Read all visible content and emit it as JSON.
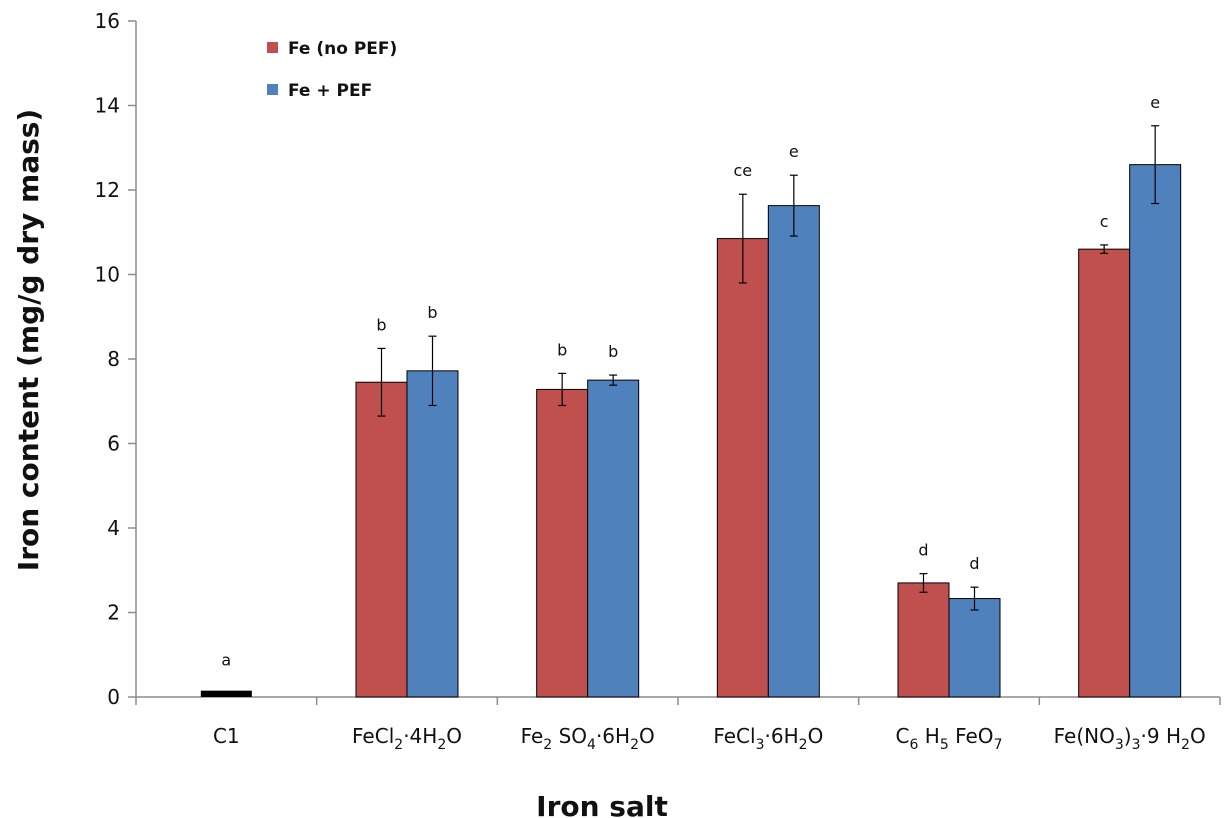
{
  "chart_data": {
    "type": "bar",
    "xlabel": "Iron salt",
    "ylabel": "Iron content (mg/g dry mass)",
    "ylim": [
      0,
      16
    ],
    "yticks": [
      0,
      2,
      4,
      6,
      8,
      10,
      12,
      14,
      16
    ],
    "categories": [
      "C1",
      "FeCl2·4H2O",
      "Fe2 SO4·6H2O",
      "FeCl3·6H2O",
      "C6 H5 FeO7",
      "Fe(NO3)3·9 H2O"
    ],
    "category_parts": [
      [
        [
          "C1",
          ""
        ]
      ],
      [
        [
          "FeCl",
          ""
        ],
        [
          "2",
          "sub"
        ],
        [
          "·4H",
          ""
        ],
        [
          "2",
          "sub"
        ],
        [
          "O",
          ""
        ]
      ],
      [
        [
          "Fe",
          ""
        ],
        [
          "2",
          "sub"
        ],
        [
          " SO",
          ""
        ],
        [
          "4",
          "sub"
        ],
        [
          "·6H",
          ""
        ],
        [
          "2",
          "sub"
        ],
        [
          "O",
          ""
        ]
      ],
      [
        [
          "FeCl",
          ""
        ],
        [
          "3",
          "sub"
        ],
        [
          "·6H",
          ""
        ],
        [
          "2",
          "sub"
        ],
        [
          "O",
          ""
        ]
      ],
      [
        [
          "C",
          ""
        ],
        [
          "6",
          "sub"
        ],
        [
          " H",
          ""
        ],
        [
          "5",
          "sub"
        ],
        [
          " FeO",
          ""
        ],
        [
          "7",
          "sub"
        ]
      ],
      [
        [
          "Fe(NO",
          ""
        ],
        [
          "3",
          "sub"
        ],
        [
          ")",
          ""
        ],
        [
          "3",
          "sub"
        ],
        [
          "·9 H",
          ""
        ],
        [
          "2",
          "sub"
        ],
        [
          "O",
          ""
        ]
      ]
    ],
    "control": {
      "category": "C1",
      "value": 0.15,
      "letter": "a",
      "color": "#000000"
    },
    "series": [
      {
        "name": "Fe (no PEF)",
        "color": "#c0504d",
        "values": [
          null,
          7.45,
          7.28,
          10.85,
          2.7,
          10.6
        ],
        "errors": [
          null,
          0.8,
          0.38,
          1.05,
          0.22,
          0.1
        ],
        "letters": [
          null,
          "b",
          "b",
          "ce",
          "d",
          "c"
        ]
      },
      {
        "name": "Fe + PEF",
        "color": "#4f81bd",
        "values": [
          null,
          7.72,
          7.5,
          11.63,
          2.33,
          12.6
        ],
        "errors": [
          null,
          0.82,
          0.12,
          0.72,
          0.27,
          0.92
        ],
        "letters": [
          null,
          "b",
          "b",
          "e",
          "d",
          "e"
        ]
      }
    ],
    "legend_position": "top-left",
    "grid": false
  }
}
